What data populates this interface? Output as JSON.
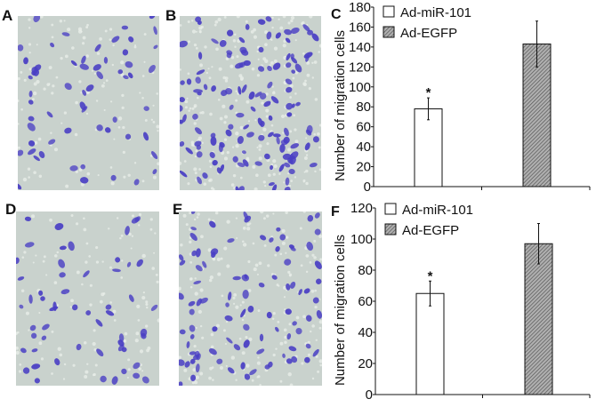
{
  "panels": {
    "A": {
      "label": "A"
    },
    "B": {
      "label": "B"
    },
    "C": {
      "label": "C"
    },
    "D": {
      "label": "D"
    },
    "E": {
      "label": "E"
    },
    "F": {
      "label": "F"
    }
  },
  "colors": {
    "micro_bg": "#c9d2cd",
    "cell_stain": "#4a3fc4",
    "bar_white": "#ffffff",
    "bar_hatched": "#8a8a8a"
  },
  "chart_data": [
    {
      "panel": "C",
      "type": "bar",
      "title": "",
      "xlabel": "",
      "ylabel": "Number of migration cells",
      "ylim": [
        0,
        180
      ],
      "yticks": [
        0,
        20,
        40,
        60,
        80,
        100,
        120,
        140,
        160,
        180
      ],
      "legend": [
        "Ad-miR-101",
        "Ad-EGFP"
      ],
      "legend_position": "top-left",
      "categories": [
        "Ad-miR-101",
        "Ad-EGFP"
      ],
      "values": [
        78,
        143
      ],
      "errors": [
        11,
        23
      ],
      "annotations": [
        {
          "bar": "Ad-miR-101",
          "text": "*"
        }
      ]
    },
    {
      "panel": "F",
      "type": "bar",
      "title": "",
      "xlabel": "",
      "ylabel": "Number of migration cells",
      "ylim": [
        0,
        120
      ],
      "yticks": [
        0,
        20,
        40,
        60,
        80,
        100,
        120
      ],
      "legend": [
        "Ad-miR-101",
        "Ad-EGFP"
      ],
      "legend_position": "top-left",
      "categories": [
        "Ad-miR-101",
        "Ad-EGFP"
      ],
      "values": [
        65,
        97
      ],
      "errors": [
        8,
        13
      ],
      "annotations": [
        {
          "bar": "Ad-miR-101",
          "text": "*"
        }
      ]
    }
  ]
}
